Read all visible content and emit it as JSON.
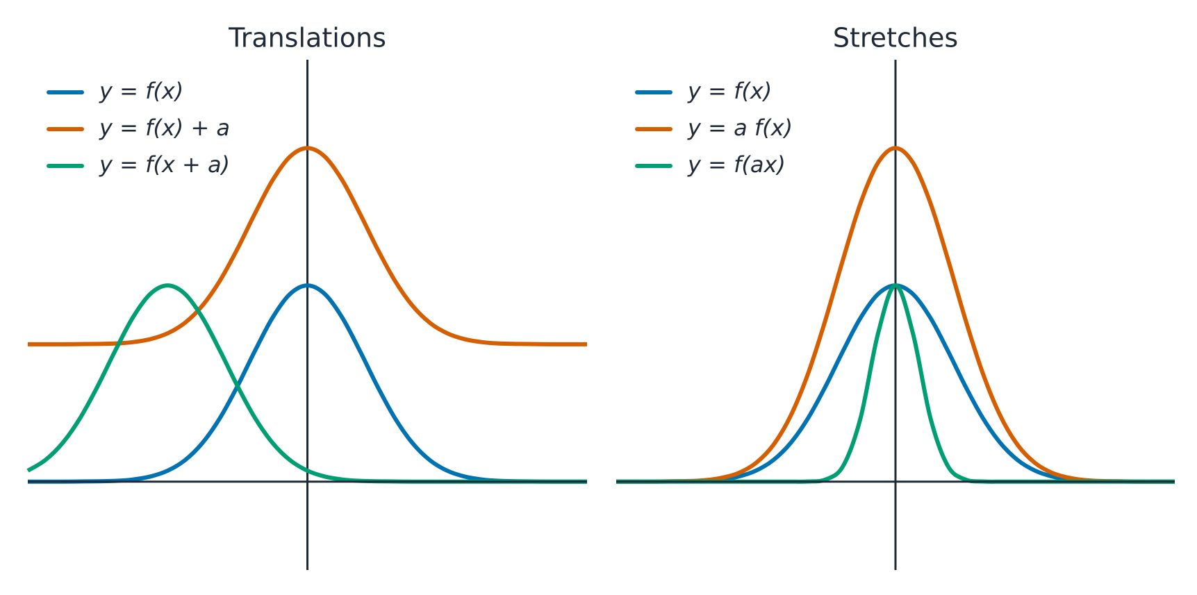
{
  "chart_data": [
    {
      "type": "line",
      "title": "Translations",
      "x": [
        -4.8,
        -4.5,
        -4.2,
        -3.9,
        -3.6,
        -3.3,
        -3,
        -2.7,
        -2.4,
        -2.1,
        -1.8,
        -1.5,
        -1.2,
        -0.9,
        -0.6,
        -0.3,
        0,
        0.3,
        0.6,
        0.9,
        1.2,
        1.5,
        1.8,
        2.1,
        2.4,
        2.7,
        3,
        3.3,
        3.6,
        3.9,
        4.2,
        4.5,
        4.8
      ],
      "xlim": [
        -4.8,
        4.8
      ],
      "ylim": [
        -0.45,
        2.15
      ],
      "legend": "upper left",
      "series": [
        {
          "name": "y = f(x)",
          "color": "#0072b2",
          "values": [
            0,
            0,
            0,
            0.001,
            0.002,
            0.004,
            0.011,
            0.026,
            0.056,
            0.11,
            0.198,
            0.325,
            0.487,
            0.667,
            0.835,
            0.956,
            1,
            0.956,
            0.835,
            0.667,
            0.487,
            0.325,
            0.198,
            0.11,
            0.056,
            0.026,
            0.011,
            0.004,
            0.002,
            0.001,
            0,
            0,
            0
          ]
        },
        {
          "name": "y = f(x) + a",
          "color": "#d55e00",
          "values": [
            0.7,
            0.7,
            0.7,
            0.701,
            0.702,
            0.704,
            0.711,
            0.726,
            0.756,
            0.81,
            0.898,
            1.025,
            1.187,
            1.367,
            1.535,
            1.656,
            1.7,
            1.656,
            1.535,
            1.367,
            1.187,
            1.025,
            0.898,
            0.81,
            0.756,
            0.726,
            0.711,
            0.704,
            0.702,
            0.701,
            0.7,
            0.7,
            0.7
          ]
        },
        {
          "name": "y = f(x + a)",
          "color": "#009e73",
          "values": [
            0.056,
            0.11,
            0.198,
            0.325,
            0.487,
            0.667,
            0.835,
            0.956,
            1,
            0.956,
            0.835,
            0.667,
            0.487,
            0.325,
            0.198,
            0.11,
            0.056,
            0.026,
            0.011,
            0.004,
            0.002,
            0.001,
            0,
            0,
            0,
            0,
            0,
            0,
            0,
            0,
            0,
            0,
            0
          ]
        }
      ]
    },
    {
      "type": "line",
      "title": "Stretches",
      "x": [
        -4.8,
        -4.5,
        -4.2,
        -3.9,
        -3.6,
        -3.3,
        -3,
        -2.7,
        -2.4,
        -2.1,
        -1.8,
        -1.5,
        -1.2,
        -0.9,
        -0.6,
        -0.3,
        0,
        0.3,
        0.6,
        0.9,
        1.2,
        1.5,
        1.8,
        2.1,
        2.4,
        2.7,
        3,
        3.3,
        3.6,
        3.9,
        4.2,
        4.5,
        4.8
      ],
      "xlim": [
        -4.8,
        4.8
      ],
      "ylim": [
        -0.45,
        2.15
      ],
      "legend": "upper left",
      "series": [
        {
          "name": "y = f(x)",
          "color": "#0072b2",
          "values": [
            0,
            0,
            0,
            0.001,
            0.002,
            0.004,
            0.011,
            0.026,
            0.056,
            0.11,
            0.198,
            0.325,
            0.487,
            0.667,
            0.835,
            0.956,
            1,
            0.956,
            0.835,
            0.667,
            0.487,
            0.325,
            0.198,
            0.11,
            0.056,
            0.026,
            0.011,
            0.004,
            0.002,
            0.001,
            0,
            0,
            0
          ]
        },
        {
          "name": "y = a f(x)",
          "color": "#d55e00",
          "values": [
            0,
            0,
            0,
            0.002,
            0.003,
            0.007,
            0.019,
            0.044,
            0.095,
            0.187,
            0.337,
            0.553,
            0.828,
            1.134,
            1.42,
            1.625,
            1.7,
            1.625,
            1.42,
            1.134,
            0.828,
            0.553,
            0.337,
            0.187,
            0.095,
            0.044,
            0.019,
            0.007,
            0.003,
            0.002,
            0,
            0,
            0
          ]
        },
        {
          "name": "y = f(ax)",
          "color": "#009e73",
          "values": [
            0,
            0,
            0,
            0,
            0,
            0,
            0,
            0,
            0,
            0,
            0,
            0.001,
            0.011,
            0.08,
            0.325,
            0.755,
            1,
            0.755,
            0.325,
            0.08,
            0.011,
            0.001,
            0,
            0,
            0,
            0,
            0,
            0,
            0,
            0,
            0,
            0,
            0
          ]
        }
      ]
    }
  ]
}
